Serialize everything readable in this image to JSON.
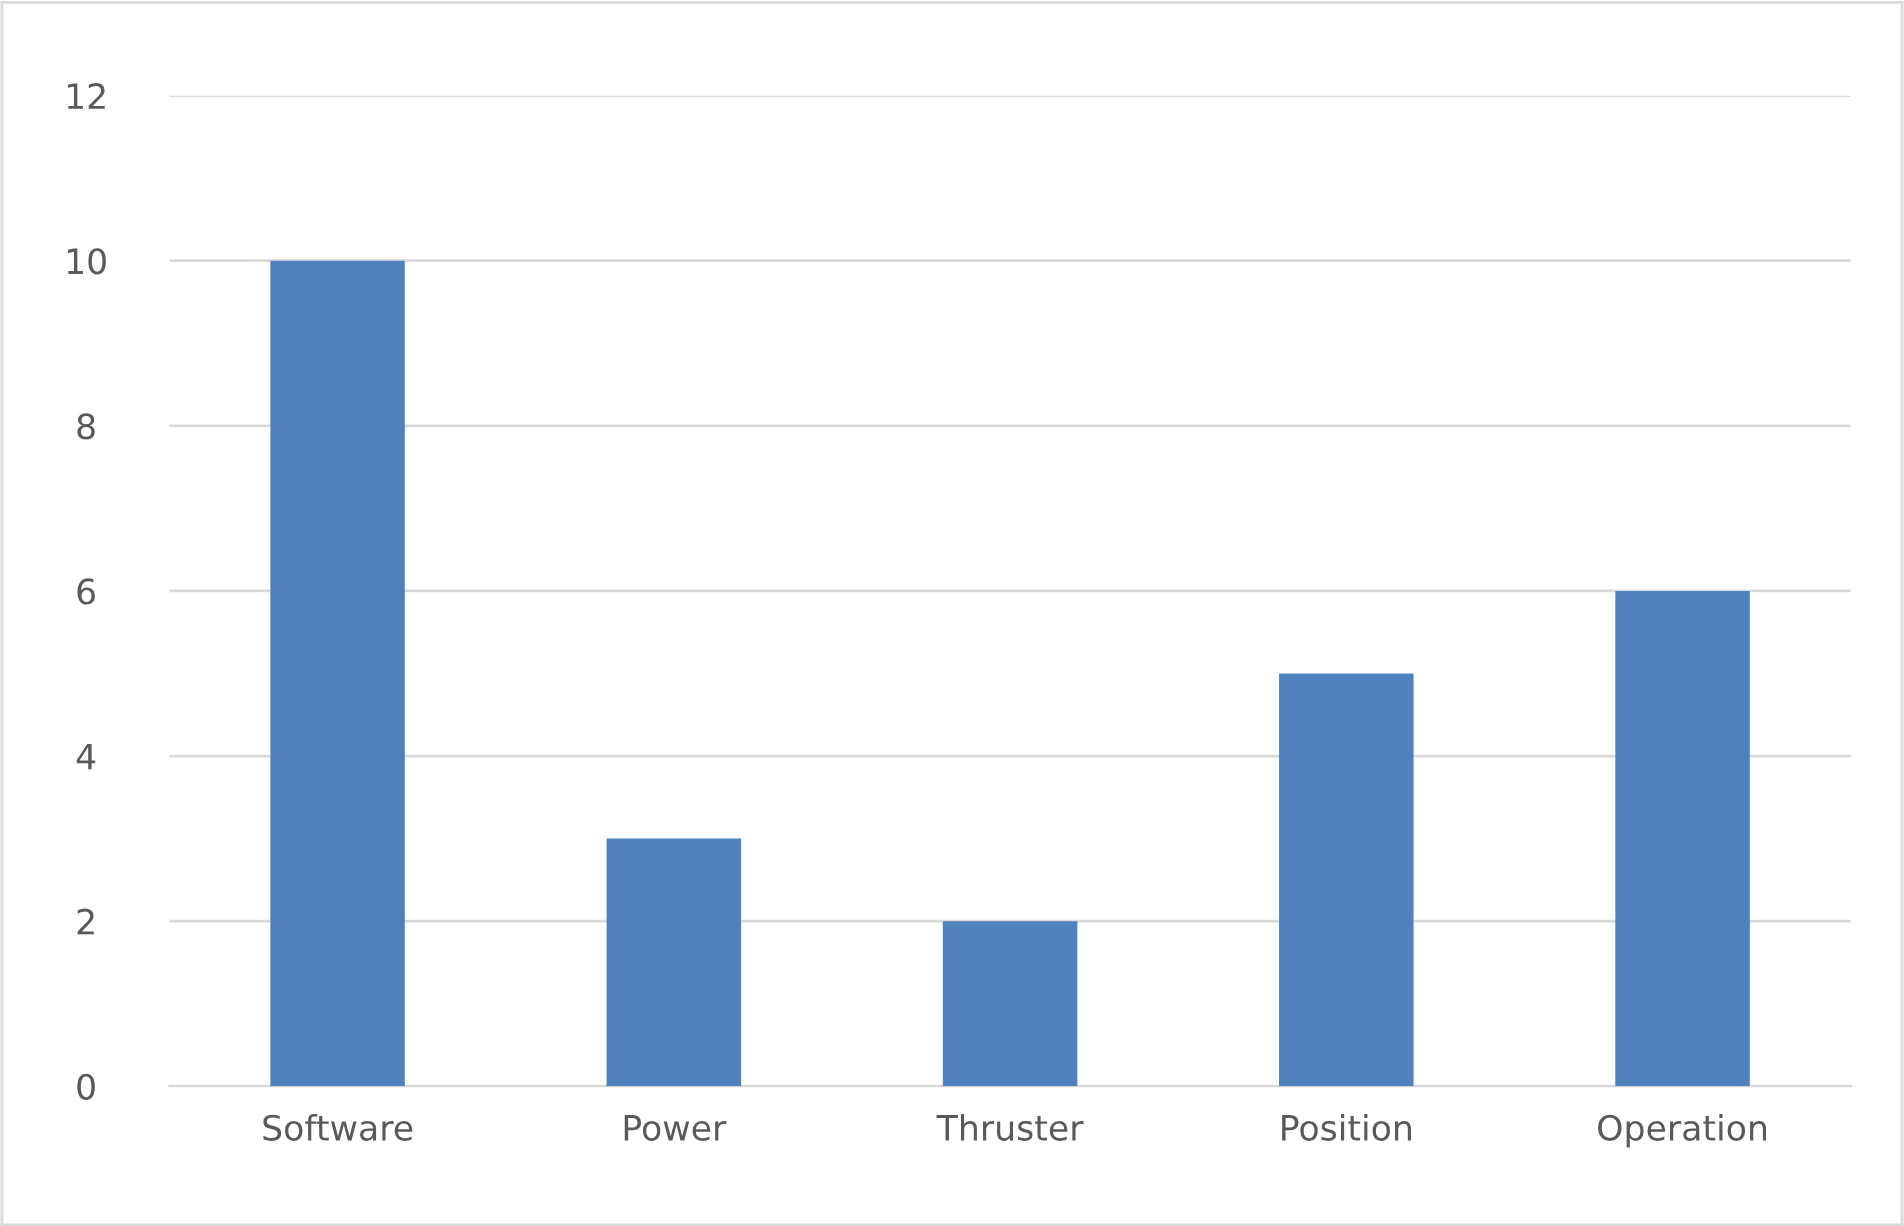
{
  "chart_data": {
    "type": "bar",
    "categories": [
      "Software",
      "Power",
      "Thruster",
      "Position",
      "Operation"
    ],
    "values": [
      10,
      3,
      2,
      5,
      6
    ],
    "color": "#4f81bd",
    "ylim": [
      0,
      12
    ],
    "yticks": [
      0,
      2,
      4,
      6,
      8,
      10,
      12
    ],
    "grid": "y"
  }
}
